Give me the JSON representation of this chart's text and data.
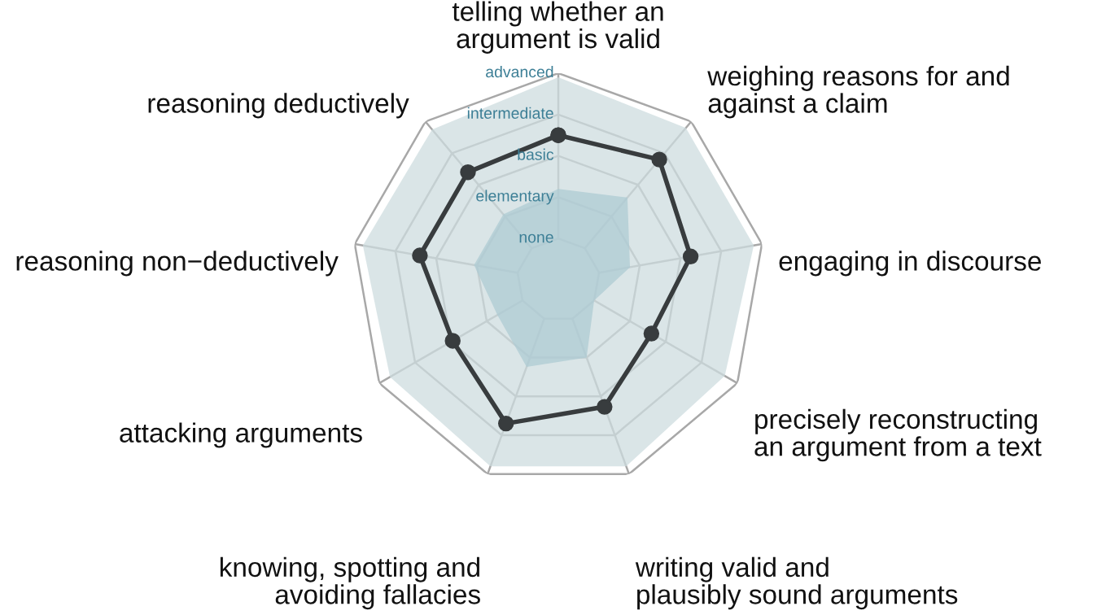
{
  "chart_data": {
    "type": "radar",
    "categories": [
      "telling whether an\nargument is valid",
      "weighing reasons for and\nagainst a claim",
      "engaging in discourse",
      "precisely reconstructing\nan argument from a text",
      "writing valid and\nplausibly sound arguments",
      "knowing, spotting and\navoiding fallacies",
      "attacking arguments",
      "reasoning non−deductively",
      "reasoning deductively"
    ],
    "ylim": [
      -1,
      4
    ],
    "yticks": [
      {
        "value": 0,
        "label": "none"
      },
      {
        "value": 1,
        "label": "elementary"
      },
      {
        "value": 2,
        "label": "basic"
      },
      {
        "value": 3,
        "label": "intermediate"
      },
      {
        "value": 4,
        "label": "advanced"
      }
    ],
    "grid": true,
    "series": [
      {
        "type": "area",
        "color": "#cddcdf",
        "values": [
          3.9,
          3.8,
          3.8,
          3.65,
          3.8,
          3.8,
          3.7,
          3.8,
          3.75
        ]
      },
      {
        "type": "area",
        "color": "#aecbd3",
        "values": [
          1.2,
          1.6,
          0.76,
          0.0,
          1.0,
          1.24,
          0.7,
          1.07,
          1.07
        ]
      },
      {
        "color": "#383c3e",
        "marker": "circle",
        "values": [
          2.5,
          2.8,
          2.25,
          1.6,
          2.27,
          2.7,
          1.95,
          2.4,
          2.4
        ]
      }
    ]
  }
}
